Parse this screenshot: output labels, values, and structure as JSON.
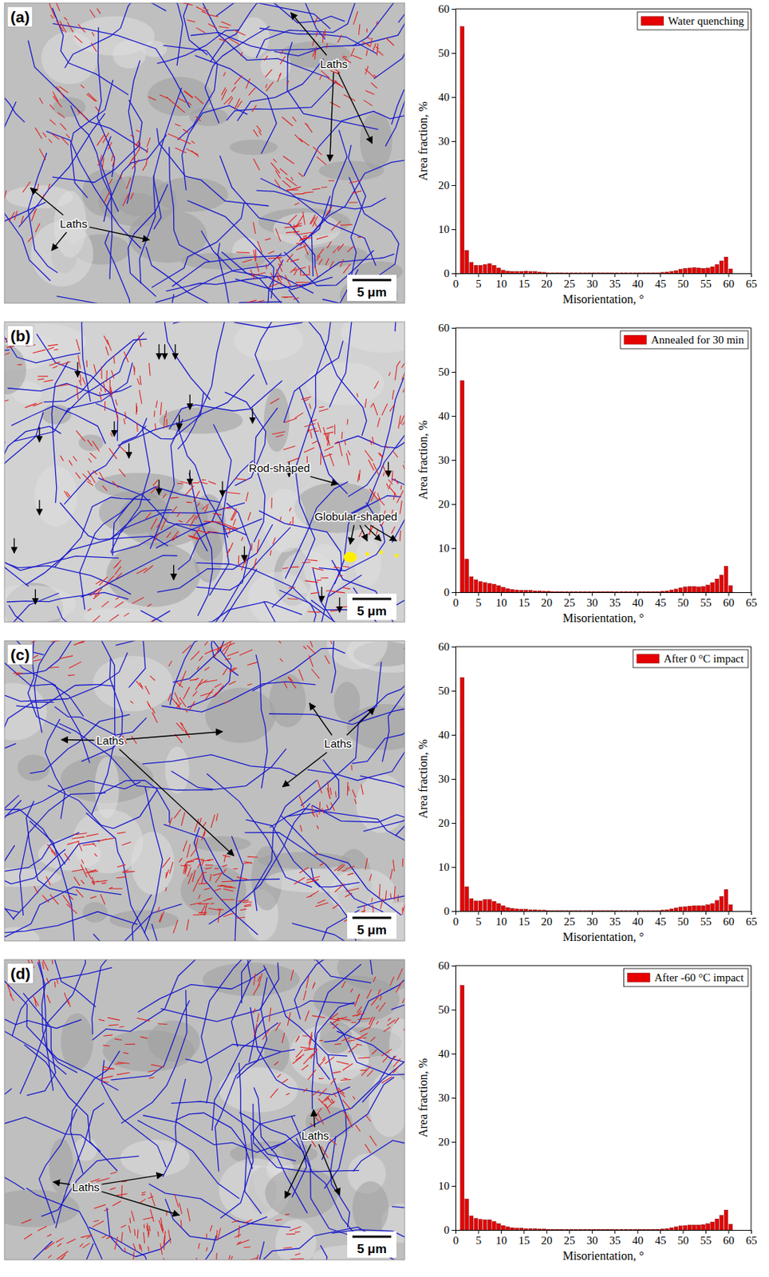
{
  "chart_data": [
    {
      "type": "histogram",
      "panel": "(a)",
      "annotations": [
        "Laths",
        "Laths"
      ],
      "scale_bar": "5 μm",
      "x_label": "Misorientation, °",
      "y_label": "Area fraction, %",
      "xlim": [
        0,
        65
      ],
      "ylim": [
        0,
        60
      ],
      "xticks": [
        0,
        5,
        10,
        15,
        20,
        25,
        30,
        35,
        40,
        45,
        50,
        55,
        60,
        65
      ],
      "yticks": [
        0,
        10,
        20,
        30,
        40,
        50,
        60
      ],
      "grid": false,
      "legend": "upper right",
      "bins": [
        1,
        2,
        3,
        4,
        5,
        6,
        7,
        8,
        9,
        10,
        11,
        12,
        13,
        14,
        15,
        16,
        17,
        18,
        19,
        20,
        21,
        22,
        23,
        24,
        25,
        26,
        27,
        28,
        29,
        30,
        31,
        32,
        33,
        34,
        35,
        36,
        37,
        38,
        39,
        40,
        41,
        42,
        43,
        44,
        45,
        46,
        47,
        48,
        49,
        50,
        51,
        52,
        53,
        54,
        55,
        56,
        57,
        58,
        59,
        60,
        61
      ],
      "series": [
        {
          "name": "Water quenching",
          "color": "#e60000",
          "values": [
            56,
            5.2,
            2.5,
            1.8,
            1.8,
            2.0,
            2.2,
            1.8,
            1.2,
            0.7,
            0.5,
            0.4,
            0.4,
            0.4,
            0.5,
            0.4,
            0.4,
            0.3,
            0.2,
            0.1,
            0.1,
            0.1,
            0.1,
            0.1,
            0.1,
            0.1,
            0.1,
            0.1,
            0.1,
            0.1,
            0.1,
            0.1,
            0.1,
            0.1,
            0.1,
            0.1,
            0.1,
            0.1,
            0.1,
            0.1,
            0.1,
            0.1,
            0.1,
            0.1,
            0.2,
            0.3,
            0.4,
            0.6,
            0.9,
            1.1,
            1.2,
            1.3,
            1.2,
            1.1,
            1.2,
            1.5,
            2.0,
            2.8,
            3.7,
            1.0
          ]
        }
      ]
    },
    {
      "type": "histogram",
      "panel": "(b)",
      "annotations": [
        "Rod-shaped",
        "Globular-shaped"
      ],
      "scale_bar": "5 μm",
      "x_label": "Misorientation, °",
      "y_label": "Area fraction, %",
      "xlim": [
        0,
        65
      ],
      "ylim": [
        0,
        60
      ],
      "xticks": [
        0,
        5,
        10,
        15,
        20,
        25,
        30,
        35,
        40,
        45,
        50,
        55,
        60,
        65
      ],
      "yticks": [
        0,
        10,
        20,
        30,
        40,
        50,
        60
      ],
      "grid": false,
      "legend": "upper right",
      "bins": [
        1,
        2,
        3,
        4,
        5,
        6,
        7,
        8,
        9,
        10,
        11,
        12,
        13,
        14,
        15,
        16,
        17,
        18,
        19,
        20,
        21,
        22,
        23,
        24,
        25,
        26,
        27,
        28,
        29,
        30,
        31,
        32,
        33,
        34,
        35,
        36,
        37,
        38,
        39,
        40,
        41,
        42,
        43,
        44,
        45,
        46,
        47,
        48,
        49,
        50,
        51,
        52,
        53,
        54,
        55,
        56,
        57,
        58,
        59,
        60,
        61
      ],
      "series": [
        {
          "name": "Annealed for 30 min",
          "color": "#e60000",
          "values": [
            48,
            7.5,
            3.5,
            2.8,
            2.4,
            2.2,
            2.0,
            1.8,
            1.5,
            1.1,
            0.8,
            0.6,
            0.5,
            0.4,
            0.4,
            0.4,
            0.3,
            0.3,
            0.2,
            0.2,
            0.1,
            0.1,
            0.1,
            0.1,
            0.1,
            0.1,
            0.1,
            0.1,
            0.1,
            0.1,
            0.1,
            0.1,
            0.1,
            0.1,
            0.1,
            0.1,
            0.1,
            0.1,
            0.1,
            0.1,
            0.1,
            0.1,
            0.1,
            0.1,
            0.2,
            0.3,
            0.5,
            0.7,
            1.0,
            1.2,
            1.3,
            1.3,
            1.2,
            1.3,
            1.6,
            2.2,
            3.0,
            3.9,
            5.9,
            1.5
          ]
        }
      ]
    },
    {
      "type": "histogram",
      "panel": "(c)",
      "annotations": [
        "Laths",
        "Laths"
      ],
      "scale_bar": "5 μm",
      "x_label": "Misorientation, °",
      "y_label": "Area fraction, %",
      "xlim": [
        0,
        65
      ],
      "ylim": [
        0,
        60
      ],
      "xticks": [
        0,
        5,
        10,
        15,
        20,
        25,
        30,
        35,
        40,
        45,
        50,
        55,
        60,
        65
      ],
      "yticks": [
        0,
        10,
        20,
        30,
        40,
        50,
        60
      ],
      "grid": false,
      "legend": "upper right",
      "bins": [
        1,
        2,
        3,
        4,
        5,
        6,
        7,
        8,
        9,
        10,
        11,
        12,
        13,
        14,
        15,
        16,
        17,
        18,
        19,
        20,
        21,
        22,
        23,
        24,
        25,
        26,
        27,
        28,
        29,
        30,
        31,
        32,
        33,
        34,
        35,
        36,
        37,
        38,
        39,
        40,
        41,
        42,
        43,
        44,
        45,
        46,
        47,
        48,
        49,
        50,
        51,
        52,
        53,
        54,
        55,
        56,
        57,
        58,
        59,
        60,
        61
      ],
      "series": [
        {
          "name": "After 0 °C impact",
          "color": "#e60000",
          "values": [
            53,
            5.5,
            2.8,
            2.3,
            2.3,
            2.6,
            2.6,
            2.2,
            1.7,
            1.2,
            0.8,
            0.6,
            0.5,
            0.4,
            0.4,
            0.3,
            0.3,
            0.2,
            0.2,
            0.1,
            0.1,
            0.1,
            0.1,
            0.1,
            0.1,
            0.1,
            0.1,
            0.1,
            0.1,
            0.1,
            0.1,
            0.1,
            0.1,
            0.1,
            0.1,
            0.1,
            0.1,
            0.1,
            0.1,
            0.1,
            0.1,
            0.1,
            0.1,
            0.1,
            0.2,
            0.3,
            0.5,
            0.7,
            0.9,
            1.0,
            1.1,
            1.2,
            1.2,
            1.2,
            1.4,
            1.7,
            2.4,
            3.3,
            4.9,
            1.4
          ]
        }
      ]
    },
    {
      "type": "histogram",
      "panel": "(d)",
      "annotations": [
        "Laths",
        "Laths"
      ],
      "scale_bar": "5 μm",
      "x_label": "Misorientation, °",
      "y_label": "Area fraction, %",
      "xlim": [
        0,
        65
      ],
      "ylim": [
        0,
        60
      ],
      "xticks": [
        0,
        5,
        10,
        15,
        20,
        25,
        30,
        35,
        40,
        45,
        50,
        55,
        60,
        65
      ],
      "yticks": [
        0,
        10,
        20,
        30,
        40,
        50,
        60
      ],
      "grid": false,
      "legend": "upper right",
      "bins": [
        1,
        2,
        3,
        4,
        5,
        6,
        7,
        8,
        9,
        10,
        11,
        12,
        13,
        14,
        15,
        16,
        17,
        18,
        19,
        20,
        21,
        22,
        23,
        24,
        25,
        26,
        27,
        28,
        29,
        30,
        31,
        32,
        33,
        34,
        35,
        36,
        37,
        38,
        39,
        40,
        41,
        42,
        43,
        44,
        45,
        46,
        47,
        48,
        49,
        50,
        51,
        52,
        53,
        54,
        55,
        56,
        57,
        58,
        59,
        60,
        61
      ],
      "series": [
        {
          "name": "After -60 °C impact",
          "color": "#e60000",
          "values": [
            55.5,
            7.0,
            3.2,
            2.6,
            2.4,
            2.3,
            2.3,
            1.9,
            1.4,
            1.0,
            0.7,
            0.5,
            0.4,
            0.4,
            0.3,
            0.3,
            0.3,
            0.2,
            0.2,
            0.1,
            0.1,
            0.1,
            0.1,
            0.1,
            0.1,
            0.1,
            0.1,
            0.1,
            0.1,
            0.1,
            0.1,
            0.1,
            0.1,
            0.1,
            0.1,
            0.1,
            0.1,
            0.1,
            0.1,
            0.1,
            0.1,
            0.1,
            0.1,
            0.1,
            0.2,
            0.3,
            0.5,
            0.7,
            0.9,
            1.0,
            1.1,
            1.1,
            1.1,
            1.2,
            1.4,
            1.8,
            2.5,
            3.3,
            4.5,
            1.3
          ]
        }
      ]
    }
  ]
}
